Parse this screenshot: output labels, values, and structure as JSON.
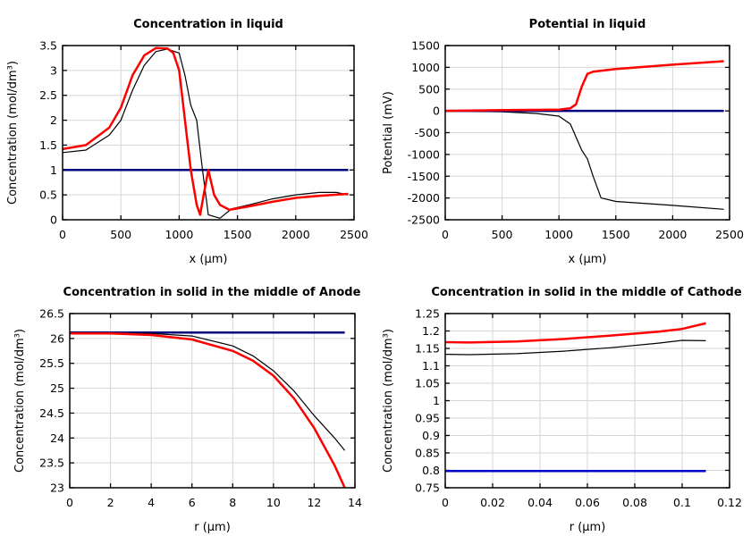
{
  "chart_data": [
    {
      "type": "line",
      "title": "Concentration in liquid",
      "xlabel": "x (µm)",
      "ylabel": "Concentration (mol/dm³)",
      "xlim": [
        0,
        2500
      ],
      "ylim": [
        0,
        3.5
      ],
      "xticks": [
        "0",
        "500",
        "1000",
        "1500",
        "2000",
        "2500"
      ],
      "yticks": [
        "0",
        "0.5",
        "1",
        "1.5",
        "2",
        "2.5",
        "3",
        "3.5"
      ],
      "grid": true,
      "series": [
        {
          "color": "#000080",
          "width": 2.5,
          "points": [
            [
              0,
              1
            ],
            [
              2450,
              1
            ]
          ]
        },
        {
          "color": "#000000",
          "width": 1.2,
          "points": [
            [
              0,
              1.35
            ],
            [
              200,
              1.4
            ],
            [
              400,
              1.7
            ],
            [
              500,
              2.0
            ],
            [
              600,
              2.6
            ],
            [
              700,
              3.1
            ],
            [
              800,
              3.38
            ],
            [
              900,
              3.43
            ],
            [
              1000,
              3.35
            ],
            [
              1050,
              2.9
            ],
            [
              1100,
              2.3
            ],
            [
              1150,
              2.0
            ],
            [
              1200,
              1.0
            ],
            [
              1250,
              0.1
            ],
            [
              1350,
              0.03
            ],
            [
              1450,
              0.22
            ],
            [
              1600,
              0.3
            ],
            [
              1800,
              0.42
            ],
            [
              2000,
              0.5
            ],
            [
              2200,
              0.55
            ],
            [
              2350,
              0.55
            ],
            [
              2450,
              0.5
            ]
          ]
        },
        {
          "color": "#ff0000",
          "width": 2.5,
          "points": [
            [
              0,
              1.42
            ],
            [
              200,
              1.5
            ],
            [
              400,
              1.85
            ],
            [
              500,
              2.25
            ],
            [
              600,
              2.9
            ],
            [
              700,
              3.3
            ],
            [
              800,
              3.45
            ],
            [
              900,
              3.44
            ],
            [
              950,
              3.35
            ],
            [
              1000,
              3.0
            ],
            [
              1050,
              2.0
            ],
            [
              1100,
              1.0
            ],
            [
              1150,
              0.3
            ],
            [
              1180,
              0.1
            ],
            [
              1210,
              0.5
            ],
            [
              1250,
              1.0
            ],
            [
              1300,
              0.5
            ],
            [
              1350,
              0.3
            ],
            [
              1430,
              0.2
            ],
            [
              1600,
              0.27
            ],
            [
              1800,
              0.36
            ],
            [
              2000,
              0.44
            ],
            [
              2200,
              0.48
            ],
            [
              2450,
              0.52
            ]
          ]
        }
      ]
    },
    {
      "type": "line",
      "title": "Potential in liquid",
      "xlabel": "x (µm)",
      "ylabel": "Potential (mV)",
      "xlim": [
        0,
        2500
      ],
      "ylim": [
        -2500,
        1500
      ],
      "xticks": [
        "0",
        "500",
        "1000",
        "1500",
        "2000",
        "2500"
      ],
      "yticks": [
        "-2500",
        "-2000",
        "-1500",
        "-1000",
        "-500",
        "0",
        "500",
        "1000",
        "1500"
      ],
      "grid": true,
      "series": [
        {
          "color": "#000000",
          "width": 1.2,
          "points": [
            [
              0,
              0
            ],
            [
              500,
              -20
            ],
            [
              800,
              -60
            ],
            [
              1000,
              -120
            ],
            [
              1100,
              -300
            ],
            [
              1200,
              -900
            ],
            [
              1250,
              -1100
            ],
            [
              1300,
              -1500
            ],
            [
              1370,
              -2000
            ],
            [
              1500,
              -2080
            ],
            [
              2000,
              -2170
            ],
            [
              2450,
              -2260
            ]
          ]
        },
        {
          "color": "#000080",
          "width": 2.5,
          "points": [
            [
              0,
              0
            ],
            [
              2450,
              0
            ]
          ]
        },
        {
          "color": "#ff0000",
          "width": 2.5,
          "points": [
            [
              0,
              0
            ],
            [
              500,
              20
            ],
            [
              1000,
              30
            ],
            [
              1100,
              60
            ],
            [
              1150,
              150
            ],
            [
              1200,
              550
            ],
            [
              1250,
              850
            ],
            [
              1300,
              900
            ],
            [
              1500,
              960
            ],
            [
              2000,
              1060
            ],
            [
              2450,
              1140
            ]
          ]
        }
      ]
    },
    {
      "type": "line",
      "title": "Concentration in solid in the middle of Anode",
      "xlabel": "r (µm)",
      "ylabel": "Concentration (mol/dm³)",
      "xlim": [
        0,
        14
      ],
      "ylim": [
        23,
        26.5
      ],
      "xticks": [
        "0",
        "2",
        "4",
        "6",
        "8",
        "10",
        "12",
        "14"
      ],
      "yticks": [
        "23",
        "23.5",
        "24",
        "24.5",
        "25",
        "25.5",
        "26",
        "26.5"
      ],
      "grid": true,
      "series": [
        {
          "color": "#000080",
          "width": 2.5,
          "points": [
            [
              0,
              26.12
            ],
            [
              13.5,
              26.12
            ]
          ]
        },
        {
          "color": "#000000",
          "width": 1.2,
          "points": [
            [
              0,
              26.12
            ],
            [
              4,
              26.1
            ],
            [
              6,
              26.05
            ],
            [
              8,
              25.85
            ],
            [
              9,
              25.65
            ],
            [
              10,
              25.35
            ],
            [
              11,
              24.95
            ],
            [
              12,
              24.45
            ],
            [
              13,
              24.0
            ],
            [
              13.5,
              23.75
            ]
          ]
        },
        {
          "color": "#ff0000",
          "width": 2.5,
          "points": [
            [
              0,
              26.1
            ],
            [
              2,
              26.1
            ],
            [
              4,
              26.07
            ],
            [
              6,
              25.98
            ],
            [
              8,
              25.75
            ],
            [
              9,
              25.55
            ],
            [
              10,
              25.25
            ],
            [
              11,
              24.8
            ],
            [
              12,
              24.2
            ],
            [
              13,
              23.45
            ],
            [
              13.5,
              23.0
            ]
          ]
        }
      ]
    },
    {
      "type": "line",
      "title": "Concentration in solid in the middle of Cathode",
      "xlabel": "r (µm)",
      "ylabel": "Concentration (mol/dm³)",
      "xlim": [
        0,
        0.12
      ],
      "ylim": [
        0.75,
        1.25
      ],
      "xticks": [
        "0",
        "0.02",
        "0.04",
        "0.06",
        "0.08",
        "0.1",
        "0.12"
      ],
      "yticks": [
        "0.75",
        "0.8",
        "0.85",
        "0.9",
        "0.95",
        "1",
        "1.05",
        "1.1",
        "1.15",
        "1.2",
        "1.25"
      ],
      "grid": true,
      "series": [
        {
          "color": "#0000cc",
          "width": 2.5,
          "points": [
            [
              0,
              0.798
            ],
            [
              0.11,
              0.798
            ]
          ]
        },
        {
          "color": "#000000",
          "width": 1.2,
          "points": [
            [
              0,
              1.133
            ],
            [
              0.01,
              1.132
            ],
            [
              0.03,
              1.135
            ],
            [
              0.05,
              1.142
            ],
            [
              0.07,
              1.152
            ],
            [
              0.09,
              1.165
            ],
            [
              0.1,
              1.173
            ],
            [
              0.11,
              1.172
            ]
          ]
        },
        {
          "color": "#ff0000",
          "width": 2.5,
          "points": [
            [
              0,
              1.168
            ],
            [
              0.01,
              1.167
            ],
            [
              0.03,
              1.17
            ],
            [
              0.05,
              1.177
            ],
            [
              0.07,
              1.187
            ],
            [
              0.09,
              1.198
            ],
            [
              0.1,
              1.206
            ],
            [
              0.11,
              1.222
            ]
          ]
        }
      ]
    }
  ]
}
